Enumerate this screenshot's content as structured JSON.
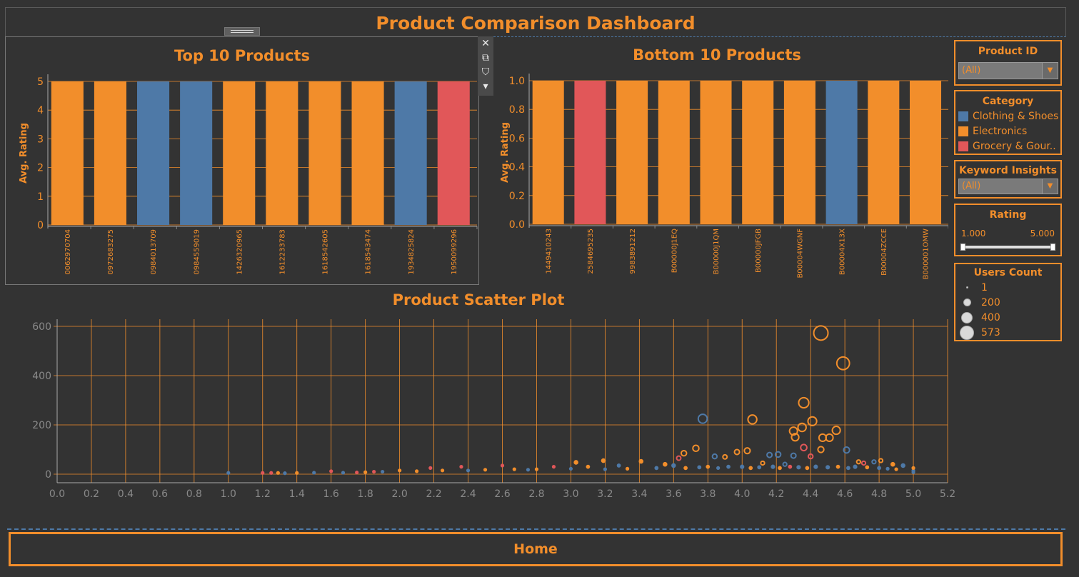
{
  "dashboard": {
    "title": "Product Comparison Dashboard"
  },
  "top_chart": {
    "title": "Top 10 Products"
  },
  "bottom_chart": {
    "title": "Bottom 10 Products"
  },
  "scatter": {
    "title": "Product Scatter Plot"
  },
  "toolbar": {
    "close": "✕",
    "popout": "⧉",
    "filter": "⛉",
    "more": "▾"
  },
  "filters": {
    "product_id": {
      "title": "Product ID",
      "value": "(All)"
    },
    "category": {
      "title": "Category",
      "items": [
        "Clothing & Shoes",
        "Electronics",
        "Grocery & Gour.."
      ]
    },
    "keyword": {
      "title": "Keyword Insights",
      "value": "(All)"
    },
    "rating": {
      "title": "Rating",
      "min": "1.000",
      "max": "5.000",
      "range": [
        1.0,
        5.0
      ]
    },
    "users_count": {
      "title": "Users Count",
      "items": [
        "1",
        "200",
        "400",
        "573"
      ]
    }
  },
  "home": {
    "label": "Home"
  },
  "colors": {
    "accent": "#f28e2b",
    "Clothing & Shoes": "#4e79a7",
    "Electronics": "#f28e2b",
    "Grocery & Gour..": "#e15759"
  },
  "chart_data": [
    {
      "type": "bar",
      "title": "Top 10 Products",
      "ylabel": "Avg. Rating",
      "ylim": [
        0,
        5
      ],
      "yticks": [
        "0",
        "1",
        "2",
        "3",
        "4",
        "5"
      ],
      "categories": [
        "0062970704",
        "0972683275",
        "0984013709",
        "0984559019",
        "1426320965",
        "1612233783",
        "1618542605",
        "1618543474",
        "1934825824",
        "1950099296"
      ],
      "values": [
        5,
        5,
        5,
        5,
        5,
        5,
        5,
        5,
        5,
        5
      ],
      "color_groups": [
        "Electronics",
        "Electronics",
        "Clothing & Shoes",
        "Clothing & Shoes",
        "Electronics",
        "Electronics",
        "Electronics",
        "Electronics",
        "Clothing & Shoes",
        "Grocery & Gour.."
      ]
    },
    {
      "type": "bar",
      "title": "Bottom 10 Products",
      "ylabel": "Avg. Rating",
      "ylim": [
        0,
        1
      ],
      "yticks": [
        "0.0",
        "0.2",
        "0.4",
        "0.6",
        "0.8",
        "1.0"
      ],
      "categories": [
        "1449410243",
        "2584695235",
        "9983891212",
        "B00000J1EQ",
        "B00000J1QM",
        "B00000JFGB",
        "B00004WGNF",
        "B00004X13X",
        "B00004ZCCE",
        "B000001OMW"
      ],
      "values": [
        1,
        1,
        1,
        1,
        1,
        1,
        1,
        1,
        1,
        1
      ],
      "color_groups": [
        "Electronics",
        "Grocery & Gour..",
        "Electronics",
        "Electronics",
        "Electronics",
        "Electronics",
        "Electronics",
        "Clothing & Shoes",
        "Electronics",
        "Electronics"
      ]
    },
    {
      "type": "scatter",
      "title": "Product Scatter Plot",
      "xlim": [
        0,
        5.2
      ],
      "ylim": [
        0,
        600
      ],
      "xticks": [
        "0.0",
        "0.2",
        "0.4",
        "0.6",
        "0.8",
        "1.0",
        "1.2",
        "1.4",
        "1.6",
        "1.8",
        "2.0",
        "2.2",
        "2.4",
        "2.6",
        "2.8",
        "3.0",
        "3.2",
        "3.4",
        "3.6",
        "3.8",
        "4.0",
        "4.2",
        "4.4",
        "4.6",
        "4.8",
        "5.0",
        "5.2"
      ],
      "yticks": [
        "0",
        "200",
        "400",
        "600"
      ],
      "size_by": "Users Count",
      "points": [
        {
          "x": 4.46,
          "y": 573,
          "size": 573,
          "group": "Electronics"
        },
        {
          "x": 4.59,
          "y": 450,
          "size": 450,
          "group": "Electronics"
        },
        {
          "x": 4.36,
          "y": 290,
          "size": 290,
          "group": "Electronics"
        },
        {
          "x": 3.77,
          "y": 225,
          "size": 225,
          "group": "Clothing & Shoes"
        },
        {
          "x": 4.06,
          "y": 222,
          "size": 222,
          "group": "Electronics"
        },
        {
          "x": 4.41,
          "y": 215,
          "size": 215,
          "group": "Electronics"
        },
        {
          "x": 4.35,
          "y": 190,
          "size": 190,
          "group": "Electronics"
        },
        {
          "x": 4.3,
          "y": 175,
          "size": 175,
          "group": "Electronics"
        },
        {
          "x": 4.55,
          "y": 178,
          "size": 178,
          "group": "Electronics"
        },
        {
          "x": 4.31,
          "y": 150,
          "size": 150,
          "group": "Electronics"
        },
        {
          "x": 4.47,
          "y": 148,
          "size": 148,
          "group": "Electronics"
        },
        {
          "x": 4.51,
          "y": 148,
          "size": 148,
          "group": "Electronics"
        },
        {
          "x": 3.73,
          "y": 105,
          "size": 105,
          "group": "Electronics"
        },
        {
          "x": 4.36,
          "y": 108,
          "size": 108,
          "group": "Grocery & Gour.."
        },
        {
          "x": 4.61,
          "y": 98,
          "size": 98,
          "group": "Clothing & Shoes"
        },
        {
          "x": 4.46,
          "y": 100,
          "size": 100,
          "group": "Electronics"
        },
        {
          "x": 4.03,
          "y": 95,
          "size": 95,
          "group": "Electronics"
        },
        {
          "x": 3.66,
          "y": 85,
          "size": 80,
          "group": "Electronics"
        },
        {
          "x": 4.21,
          "y": 80,
          "size": 80,
          "group": "Clothing & Shoes"
        },
        {
          "x": 3.97,
          "y": 90,
          "size": 70,
          "group": "Electronics"
        },
        {
          "x": 4.16,
          "y": 78,
          "size": 70,
          "group": "Clothing & Shoes"
        },
        {
          "x": 4.3,
          "y": 75,
          "size": 70,
          "group": "Clothing & Shoes"
        },
        {
          "x": 4.4,
          "y": 72,
          "size": 60,
          "group": "Grocery & Gour.."
        },
        {
          "x": 3.84,
          "y": 72,
          "size": 60,
          "group": "Clothing & Shoes"
        },
        {
          "x": 3.9,
          "y": 70,
          "size": 50,
          "group": "Electronics"
        },
        {
          "x": 3.63,
          "y": 65,
          "size": 50,
          "group": "Grocery & Gour.."
        },
        {
          "x": 3.19,
          "y": 55,
          "size": 30,
          "group": "Electronics"
        },
        {
          "x": 3.41,
          "y": 52,
          "size": 30,
          "group": "Electronics"
        },
        {
          "x": 3.03,
          "y": 48,
          "size": 30,
          "group": "Electronics"
        },
        {
          "x": 4.81,
          "y": 55,
          "size": 40,
          "group": "Electronics"
        },
        {
          "x": 4.77,
          "y": 50,
          "size": 40,
          "group": "Clothing & Shoes"
        },
        {
          "x": 4.68,
          "y": 50,
          "size": 40,
          "group": "Electronics"
        },
        {
          "x": 4.88,
          "y": 40,
          "size": 30,
          "group": "Electronics"
        },
        {
          "x": 4.94,
          "y": 35,
          "size": 30,
          "group": "Clothing & Shoes"
        },
        {
          "x": 4.71,
          "y": 45,
          "size": 40,
          "group": "Grocery & Gour.."
        },
        {
          "x": 4.12,
          "y": 45,
          "size": 40,
          "group": "Electronics"
        },
        {
          "x": 4.25,
          "y": 40,
          "size": 40,
          "group": "Clothing & Shoes"
        },
        {
          "x": 3.55,
          "y": 40,
          "size": 30,
          "group": "Electronics"
        },
        {
          "x": 3.6,
          "y": 35,
          "size": 30,
          "group": "Clothing & Shoes"
        },
        {
          "x": 3.28,
          "y": 35,
          "size": 20,
          "group": "Clothing & Shoes"
        },
        {
          "x": 3.1,
          "y": 30,
          "size": 20,
          "group": "Electronics"
        },
        {
          "x": 2.9,
          "y": 30,
          "size": 15,
          "group": "Grocery & Gour.."
        },
        {
          "x": 2.6,
          "y": 35,
          "size": 15,
          "group": "Grocery & Gour.."
        },
        {
          "x": 2.36,
          "y": 30,
          "size": 12,
          "group": "Grocery & Gour.."
        },
        {
          "x": 2.18,
          "y": 25,
          "size": 10,
          "group": "Grocery & Gour.."
        },
        {
          "x": 2.0,
          "y": 15,
          "size": 8,
          "group": "Electronics"
        },
        {
          "x": 1.85,
          "y": 10,
          "size": 6,
          "group": "Grocery & Gour.."
        },
        {
          "x": 1.6,
          "y": 12,
          "size": 6,
          "group": "Grocery & Gour.."
        },
        {
          "x": 1.0,
          "y": 5,
          "size": 4,
          "group": "Clothing & Shoes"
        },
        {
          "x": 1.2,
          "y": 5,
          "size": 3,
          "group": "Grocery & Gour.."
        },
        {
          "x": 1.25,
          "y": 5,
          "size": 4,
          "group": "Grocery & Gour.."
        },
        {
          "x": 1.29,
          "y": 5,
          "size": 3,
          "group": "Electronics"
        },
        {
          "x": 1.33,
          "y": 4,
          "size": 3,
          "group": "Clothing & Shoes"
        },
        {
          "x": 1.4,
          "y": 5,
          "size": 3,
          "group": "Electronics"
        },
        {
          "x": 1.5,
          "y": 6,
          "size": 3,
          "group": "Clothing & Shoes"
        },
        {
          "x": 1.67,
          "y": 6,
          "size": 4,
          "group": "Clothing & Shoes"
        },
        {
          "x": 1.75,
          "y": 7,
          "size": 4,
          "group": "Grocery & Gour.."
        },
        {
          "x": 1.8,
          "y": 8,
          "size": 4,
          "group": "Electronics"
        },
        {
          "x": 1.9,
          "y": 10,
          "size": 5,
          "group": "Clothing & Shoes"
        },
        {
          "x": 2.1,
          "y": 12,
          "size": 6,
          "group": "Electronics"
        },
        {
          "x": 2.25,
          "y": 15,
          "size": 8,
          "group": "Electronics"
        },
        {
          "x": 2.4,
          "y": 15,
          "size": 8,
          "group": "Clothing & Shoes"
        },
        {
          "x": 2.5,
          "y": 18,
          "size": 8,
          "group": "Electronics"
        },
        {
          "x": 2.67,
          "y": 20,
          "size": 10,
          "group": "Electronics"
        },
        {
          "x": 2.75,
          "y": 18,
          "size": 10,
          "group": "Clothing & Shoes"
        },
        {
          "x": 2.8,
          "y": 20,
          "size": 10,
          "group": "Electronics"
        },
        {
          "x": 3.0,
          "y": 22,
          "size": 12,
          "group": "Clothing & Shoes"
        },
        {
          "x": 3.2,
          "y": 20,
          "size": 15,
          "group": "Clothing & Shoes"
        },
        {
          "x": 3.33,
          "y": 22,
          "size": 15,
          "group": "Electronics"
        },
        {
          "x": 3.5,
          "y": 25,
          "size": 20,
          "group": "Clothing & Shoes"
        },
        {
          "x": 3.67,
          "y": 25,
          "size": 20,
          "group": "Electronics"
        },
        {
          "x": 3.75,
          "y": 28,
          "size": 20,
          "group": "Clothing & Shoes"
        },
        {
          "x": 3.8,
          "y": 30,
          "size": 20,
          "group": "Electronics"
        },
        {
          "x": 3.86,
          "y": 25,
          "size": 15,
          "group": "Clothing & Shoes"
        },
        {
          "x": 3.92,
          "y": 30,
          "size": 20,
          "group": "Clothing & Shoes"
        },
        {
          "x": 4.0,
          "y": 30,
          "size": 25,
          "group": "Clothing & Shoes"
        },
        {
          "x": 4.05,
          "y": 25,
          "size": 20,
          "group": "Electronics"
        },
        {
          "x": 4.1,
          "y": 28,
          "size": 20,
          "group": "Clothing & Shoes"
        },
        {
          "x": 4.18,
          "y": 30,
          "size": 25,
          "group": "Clothing & Shoes"
        },
        {
          "x": 4.22,
          "y": 25,
          "size": 20,
          "group": "Electronics"
        },
        {
          "x": 4.28,
          "y": 30,
          "size": 20,
          "group": "Grocery & Gour.."
        },
        {
          "x": 4.33,
          "y": 28,
          "size": 25,
          "group": "Clothing & Shoes"
        },
        {
          "x": 4.38,
          "y": 25,
          "size": 20,
          "group": "Electronics"
        },
        {
          "x": 4.43,
          "y": 30,
          "size": 25,
          "group": "Clothing & Shoes"
        },
        {
          "x": 4.5,
          "y": 28,
          "size": 25,
          "group": "Clothing & Shoes"
        },
        {
          "x": 4.56,
          "y": 30,
          "size": 20,
          "group": "Electronics"
        },
        {
          "x": 4.62,
          "y": 25,
          "size": 20,
          "group": "Clothing & Shoes"
        },
        {
          "x": 4.66,
          "y": 30,
          "size": 25,
          "group": "Clothing & Shoes"
        },
        {
          "x": 4.73,
          "y": 28,
          "size": 20,
          "group": "Electronics"
        },
        {
          "x": 4.8,
          "y": 25,
          "size": 20,
          "group": "Clothing & Shoes"
        },
        {
          "x": 4.85,
          "y": 22,
          "size": 15,
          "group": "Clothing & Shoes"
        },
        {
          "x": 4.9,
          "y": 20,
          "size": 15,
          "group": "Electronics"
        },
        {
          "x": 5.0,
          "y": 15,
          "size": 10,
          "group": "Clothing & Shoes"
        },
        {
          "x": 5.0,
          "y": 25,
          "size": 10,
          "group": "Electronics"
        },
        {
          "x": 5.0,
          "y": 8,
          "size": 5,
          "group": "Clothing & Shoes"
        }
      ]
    }
  ]
}
